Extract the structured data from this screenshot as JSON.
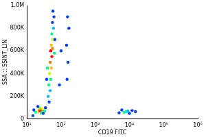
{
  "chart_data": {
    "type": "scatter",
    "x_label": "CD19 FITC",
    "y_label": "SSA :: SSINT_LIN",
    "log": "x",
    "grid": false,
    "xlim": [
      10,
      1000000
    ],
    "xticks": [
      {
        "value": 10,
        "label": "10¹"
      },
      {
        "value": 100,
        "label": "10²"
      },
      {
        "value": 1000,
        "label": "10³"
      },
      {
        "value": 10000,
        "label": "10⁴"
      },
      {
        "value": 100000,
        "label": "10⁵"
      },
      {
        "value": 1000000,
        "label": "10⁶"
      }
    ],
    "ylim": [
      0,
      1000000
    ],
    "yticks": [
      0,
      {
        "value": 200000,
        "label": "200K"
      },
      {
        "value": 400000,
        "label": "400K"
      },
      {
        "value": 600000,
        "label": "600K"
      },
      {
        "value": 800000,
        "label": "800K"
      },
      {
        "value": 1000000,
        "label": "1.0M"
      }
    ],
    "x": [
      25,
      22,
      28,
      20,
      30,
      24,
      18,
      33,
      26,
      35,
      16,
      21,
      30,
      45,
      42,
      48,
      44,
      50,
      46,
      52,
      48,
      54,
      50,
      56,
      52,
      58,
      54,
      60,
      56,
      62,
      58,
      40,
      64,
      38,
      66,
      150,
      160,
      145,
      170,
      155,
      90,
      100,
      8000,
      7000,
      9000,
      5000,
      12000,
      6000,
      10000,
      15000,
      15
    ],
    "values": [
      75000,
      70000,
      80000,
      65000,
      90000,
      95000,
      60000,
      70000,
      55000,
      100000,
      80000,
      110000,
      50000,
      150000,
      200000,
      250000,
      300000,
      350000,
      400000,
      450000,
      500000,
      550000,
      600000,
      620000,
      650000,
      700000,
      750000,
      800000,
      850000,
      900000,
      950000,
      450000,
      580000,
      350000,
      700000,
      350000,
      500000,
      650000,
      800000,
      900000,
      300000,
      600000,
      65000,
      60000,
      70000,
      55000,
      75000,
      80000,
      50000,
      65000,
      30000
    ],
    "colors": [
      "#ff0000",
      "#ff2000",
      "#ff8000",
      "#ffff00",
      "#ffff00",
      "#80ff00",
      "#00ffc0",
      "#00ffc0",
      "#00ff80",
      "#0040ff",
      "#0040ff",
      "#0040ff",
      "#0040ff",
      "#0040ff",
      "#00bfff",
      "#00bfff",
      "#00ff80",
      "#00ff80",
      "#c0ff00",
      "#ffc000",
      "#ff8000",
      "#ff0000",
      "#ff0000",
      "#ff8000",
      "#ffc000",
      "#c0ff00",
      "#00ff80",
      "#00bfff",
      "#0040ff",
      "#0040ff",
      "#0040ff",
      "#00ff80",
      "#00ff80",
      "#0040ff",
      "#0040ff",
      "#0040ff",
      "#0040ff",
      "#0040ff",
      "#0040ff",
      "#0040ff",
      "#0040ff",
      "#0040ff",
      "#00ffc0",
      "#00ff80",
      "#00bfff",
      "#0040ff",
      "#0040ff",
      "#0040ff",
      "#0040ff",
      "#0040ff",
      "#0040ff"
    ]
  }
}
